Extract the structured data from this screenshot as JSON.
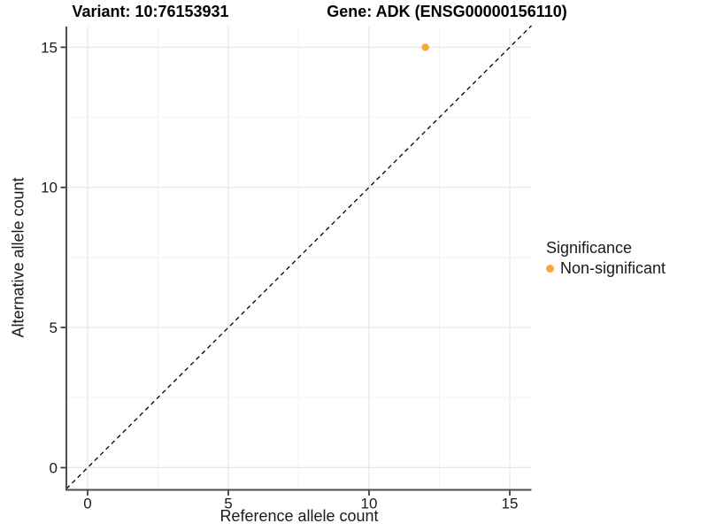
{
  "chart_data": {
    "type": "scatter",
    "title_left": "Variant: 10:76153931",
    "title_right": "Gene: ADK (ENSG00000156110)",
    "xlabel": "Reference allele count",
    "ylabel": "Alternative allele count",
    "xticks": [
      0,
      5,
      10,
      15
    ],
    "yticks": [
      0,
      5,
      10,
      15
    ],
    "xlim": [
      -0.78,
      15.78
    ],
    "ylim": [
      -0.78,
      15.78
    ],
    "grid": {
      "major": true,
      "minor": true,
      "minor_x": [
        2.5,
        7.5,
        12.5
      ],
      "minor_y": [
        2.5,
        7.5,
        12.5
      ]
    },
    "abline": {
      "slope": 1,
      "intercept": 0,
      "linestyle": "dashed",
      "color": "#000000"
    },
    "series": [
      {
        "name": "Non-significant",
        "color": "#F9A43C",
        "points": [
          {
            "x": 12,
            "y": 15
          }
        ]
      }
    ],
    "legend": {
      "title": "Significance",
      "position": "right"
    },
    "colors": {
      "axis_line": "#4d4d4d",
      "tick_mark": "#333333",
      "grid_major": "#e6e6e6",
      "grid_minor": "#f2f2f2",
      "text": "#1a1a1a",
      "background": "#ffffff"
    }
  }
}
